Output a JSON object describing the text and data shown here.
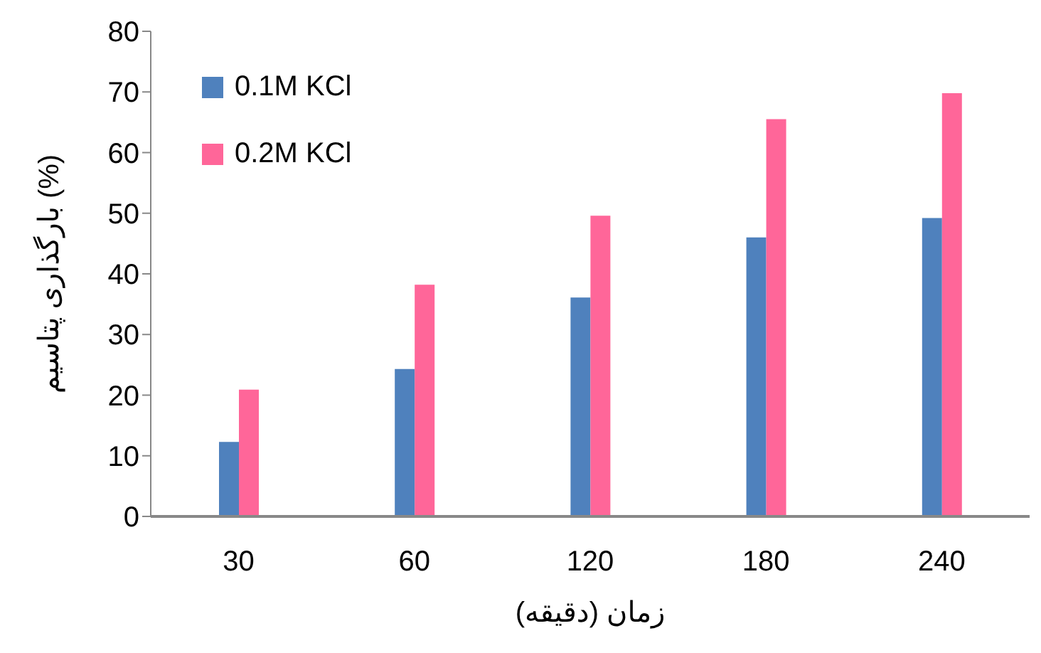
{
  "chart_data": {
    "type": "bar",
    "xlabel": "زمان (دقیقه)",
    "ylabel": "بارگذاری پتاسیم (%)",
    "categories": [
      "30",
      "60",
      "120",
      "180",
      "240"
    ],
    "series": [
      {
        "name": "0.1M KCl",
        "color": "#4f81bd",
        "values": [
          12.3,
          24.3,
          36.1,
          46.0,
          49.2
        ]
      },
      {
        "name": "0.2M KCl",
        "color": "#ff6699",
        "values": [
          20.9,
          38.2,
          49.6,
          65.5,
          69.8
        ]
      }
    ],
    "ylim": [
      0,
      80
    ],
    "yticks": [
      0,
      10,
      20,
      30,
      40,
      50,
      60,
      70,
      80
    ],
    "grid": false,
    "legend": "top left"
  }
}
